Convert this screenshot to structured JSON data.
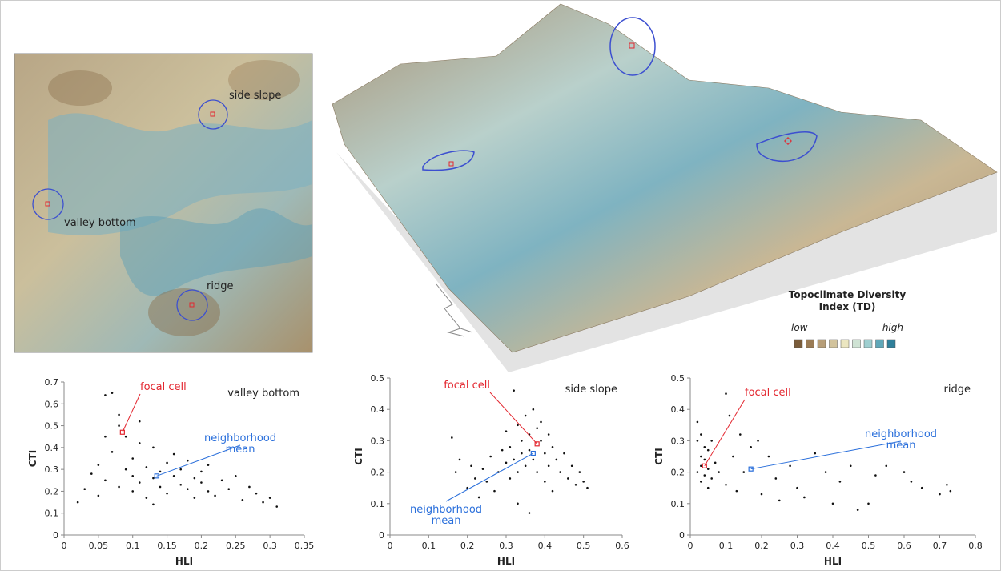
{
  "map": {
    "labels": [
      "side slope",
      "valley bottom",
      "ridge"
    ]
  },
  "legend": {
    "title": [
      "Topoclimate Diversity",
      "Index (TD)"
    ],
    "low": "low",
    "high": "high",
    "colors": [
      "#7a5c3a",
      "#9a7b55",
      "#b79e78",
      "#d2c39c",
      "#ebe6c0",
      "#cfe3d4",
      "#9fcfd0",
      "#5fa7b8",
      "#2f7f9a"
    ]
  },
  "chart_data": [
    {
      "type": "scatter",
      "title": "valley bottom",
      "x_label": "HLI",
      "y_label": "CTI",
      "color": "#111",
      "xlim": [
        0,
        0.35
      ],
      "xticks": [
        0,
        0.05,
        0.1,
        0.15,
        0.2,
        0.25,
        0.3,
        0.35
      ],
      "ylim": [
        0,
        0.7
      ],
      "yticks": [
        0,
        0.1,
        0.2,
        0.3,
        0.4,
        0.5,
        0.6,
        0.7
      ],
      "x": [
        0.02,
        0.03,
        0.04,
        0.05,
        0.05,
        0.06,
        0.06,
        0.07,
        0.07,
        0.08,
        0.08,
        0.09,
        0.09,
        0.1,
        0.1,
        0.1,
        0.11,
        0.11,
        0.12,
        0.12,
        0.13,
        0.13,
        0.14,
        0.14,
        0.15,
        0.15,
        0.16,
        0.16,
        0.17,
        0.17,
        0.18,
        0.18,
        0.19,
        0.19,
        0.2,
        0.2,
        0.21,
        0.21,
        0.22,
        0.23,
        0.24,
        0.25,
        0.26,
        0.27,
        0.28,
        0.29,
        0.3,
        0.31,
        0.06,
        0.08,
        0.11,
        0.13
      ],
      "values": [
        0.15,
        0.21,
        0.28,
        0.32,
        0.18,
        0.64,
        0.25,
        0.65,
        0.38,
        0.55,
        0.22,
        0.3,
        0.45,
        0.27,
        0.35,
        0.2,
        0.52,
        0.24,
        0.31,
        0.17,
        0.4,
        0.26,
        0.29,
        0.22,
        0.33,
        0.19,
        0.27,
        0.37,
        0.23,
        0.3,
        0.21,
        0.34,
        0.26,
        0.17,
        0.24,
        0.29,
        0.2,
        0.32,
        0.18,
        0.25,
        0.21,
        0.27,
        0.16,
        0.22,
        0.19,
        0.15,
        0.17,
        0.13,
        0.45,
        0.5,
        0.42,
        0.14
      ],
      "focal_cell": {
        "label": [
          "focal cell"
        ],
        "x": 0.085,
        "y": 0.47,
        "color": "#e3262f"
      },
      "neighborhood_mean": {
        "label": [
          "neighborhood",
          "mean"
        ],
        "x": 0.135,
        "y": 0.27,
        "color": "#2a6fdb"
      }
    },
    {
      "type": "scatter",
      "title": "side slope",
      "x_label": "HLI",
      "y_label": "CTI",
      "color": "#111",
      "xlim": [
        0,
        0.6
      ],
      "xticks": [
        0,
        0.1,
        0.2,
        0.3,
        0.4,
        0.5,
        0.6
      ],
      "ylim": [
        0,
        0.5
      ],
      "yticks": [
        0,
        0.1,
        0.2,
        0.3,
        0.4,
        0.5
      ],
      "x": [
        0.16,
        0.17,
        0.18,
        0.2,
        0.21,
        0.22,
        0.23,
        0.24,
        0.25,
        0.26,
        0.27,
        0.28,
        0.29,
        0.3,
        0.3,
        0.31,
        0.31,
        0.32,
        0.32,
        0.33,
        0.33,
        0.34,
        0.34,
        0.35,
        0.35,
        0.36,
        0.36,
        0.37,
        0.37,
        0.38,
        0.38,
        0.39,
        0.39,
        0.4,
        0.4,
        0.41,
        0.41,
        0.42,
        0.42,
        0.43,
        0.44,
        0.45,
        0.46,
        0.47,
        0.48,
        0.49,
        0.5,
        0.51,
        0.33,
        0.36
      ],
      "values": [
        0.31,
        0.2,
        0.24,
        0.15,
        0.22,
        0.18,
        0.12,
        0.21,
        0.17,
        0.25,
        0.14,
        0.2,
        0.27,
        0.23,
        0.33,
        0.18,
        0.28,
        0.46,
        0.24,
        0.35,
        0.2,
        0.3,
        0.26,
        0.38,
        0.22,
        0.32,
        0.27,
        0.4,
        0.24,
        0.34,
        0.2,
        0.3,
        0.36,
        0.26,
        0.17,
        0.32,
        0.22,
        0.28,
        0.14,
        0.24,
        0.2,
        0.26,
        0.18,
        0.22,
        0.16,
        0.2,
        0.17,
        0.15,
        0.1,
        0.07
      ],
      "focal_cell": {
        "label": [
          "focal cell"
        ],
        "x": 0.38,
        "y": 0.29,
        "color": "#e3262f"
      },
      "neighborhood_mean": {
        "label": [
          "neighborhood",
          "mean"
        ],
        "x": 0.37,
        "y": 0.26,
        "color": "#2a6fdb"
      }
    },
    {
      "type": "scatter",
      "title": "ridge",
      "x_label": "HLI",
      "y_label": "CTI",
      "color": "#111",
      "xlim": [
        0,
        0.8
      ],
      "xticks": [
        0,
        0.1,
        0.2,
        0.3,
        0.4,
        0.5,
        0.6,
        0.7,
        0.8
      ],
      "ylim": [
        0,
        0.5
      ],
      "yticks": [
        0,
        0.1,
        0.2,
        0.3,
        0.4,
        0.5
      ],
      "x": [
        0.02,
        0.02,
        0.02,
        0.03,
        0.03,
        0.03,
        0.03,
        0.04,
        0.04,
        0.04,
        0.05,
        0.05,
        0.05,
        0.06,
        0.06,
        0.07,
        0.08,
        0.1,
        0.1,
        0.11,
        0.12,
        0.13,
        0.15,
        0.17,
        0.2,
        0.22,
        0.24,
        0.25,
        0.28,
        0.3,
        0.32,
        0.35,
        0.38,
        0.4,
        0.42,
        0.45,
        0.47,
        0.5,
        0.52,
        0.55,
        0.6,
        0.62,
        0.65,
        0.7,
        0.72,
        0.73,
        0.14,
        0.19
      ],
      "values": [
        0.3,
        0.2,
        0.36,
        0.25,
        0.17,
        0.32,
        0.22,
        0.28,
        0.19,
        0.24,
        0.15,
        0.27,
        0.21,
        0.18,
        0.3,
        0.23,
        0.2,
        0.45,
        0.16,
        0.38,
        0.25,
        0.14,
        0.2,
        0.28,
        0.13,
        0.25,
        0.18,
        0.11,
        0.22,
        0.15,
        0.12,
        0.26,
        0.2,
        0.1,
        0.17,
        0.22,
        0.08,
        0.1,
        0.19,
        0.22,
        0.2,
        0.17,
        0.15,
        0.13,
        0.16,
        0.14,
        0.32,
        0.3
      ],
      "focal_cell": {
        "label": [
          "focal cell"
        ],
        "x": 0.04,
        "y": 0.22,
        "color": "#e3262f"
      },
      "neighborhood_mean": {
        "label": [
          "neighborhood",
          "mean"
        ],
        "x": 0.17,
        "y": 0.21,
        "color": "#2a6fdb"
      }
    }
  ]
}
